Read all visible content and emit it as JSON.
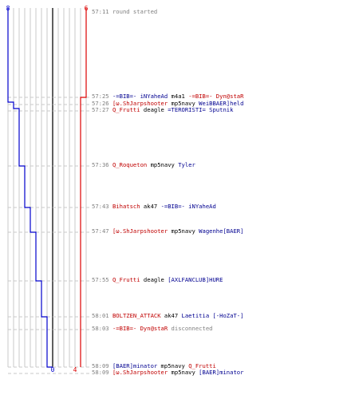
{
  "graph": {
    "blue_start_label": "8",
    "red_start_label": "6",
    "blue_end_label": "0",
    "red_end_label": "4",
    "blue_color": "#0000cc",
    "red_color": "#dd0000",
    "grid_color": "#c8c8c8",
    "dash_color": "#c8c8c8"
  },
  "events": [
    {
      "time": "57:11",
      "parts": [
        {
          "text": "round started",
          "cls": "sys"
        }
      ]
    },
    {
      "time": "57:25",
      "parts": [
        {
          "text": "-=BIB=- iNYaheAd",
          "cls": "blue"
        },
        {
          "text": " m4a1 ",
          "cls": "wpn"
        },
        {
          "text": "-=BIB=- Dyn@staR",
          "cls": "red"
        }
      ]
    },
    {
      "time": "57:26",
      "parts": [
        {
          "text": "[ω.ShJarpshooter",
          "cls": "red"
        },
        {
          "text": " mp5navy ",
          "cls": "wpn"
        },
        {
          "text": "WeiBBAER]held",
          "cls": "blue"
        }
      ]
    },
    {
      "time": "57:27",
      "parts": [
        {
          "text": "Q_Frutti",
          "cls": "red"
        },
        {
          "text": " deagle ",
          "cls": "wpn"
        },
        {
          "text": "=TERORISTI= Sputnik",
          "cls": "blue"
        }
      ]
    },
    {
      "time": "57:36",
      "parts": [
        {
          "text": "Q_Roqueton",
          "cls": "red"
        },
        {
          "text": " mp5navy ",
          "cls": "wpn"
        },
        {
          "text": "Tyler",
          "cls": "blue"
        }
      ]
    },
    {
      "time": "57:43",
      "parts": [
        {
          "text": "Bihatsch",
          "cls": "red"
        },
        {
          "text": " ak47 ",
          "cls": "wpn"
        },
        {
          "text": "-=BIB=- iNYaheAd",
          "cls": "blue"
        }
      ]
    },
    {
      "time": "57:47",
      "parts": [
        {
          "text": "[ω.ShJarpshooter",
          "cls": "red"
        },
        {
          "text": " mp5navy ",
          "cls": "wpn"
        },
        {
          "text": "Wagenhe[BAER]",
          "cls": "blue"
        }
      ]
    },
    {
      "time": "57:55",
      "parts": [
        {
          "text": "Q_Frutti",
          "cls": "red"
        },
        {
          "text": " deagle ",
          "cls": "wpn"
        },
        {
          "text": "[AXLFANCLUB]HURE",
          "cls": "blue"
        }
      ]
    },
    {
      "time": "58:01",
      "parts": [
        {
          "text": "BOLTZEN_ATTACK",
          "cls": "red"
        },
        {
          "text": " ak47 ",
          "cls": "wpn"
        },
        {
          "text": "Laetitia [-HoZaT-]",
          "cls": "blue"
        }
      ]
    },
    {
      "time": "58:03",
      "parts": [
        {
          "text": "-=BIB=- Dyn@staR",
          "cls": "red"
        },
        {
          "text": " disconnected",
          "cls": "sys"
        }
      ]
    },
    {
      "time": "58:09",
      "parts": [
        {
          "text": "[BAER]minator",
          "cls": "blue"
        },
        {
          "text": " mp5navy ",
          "cls": "wpn"
        },
        {
          "text": "Q_Frutti",
          "cls": "red"
        }
      ]
    },
    {
      "time": "58:09",
      "parts": [
        {
          "text": "[ω.ShJarpshooter",
          "cls": "red"
        },
        {
          "text": " mp5navy ",
          "cls": "wpn"
        },
        {
          "text": "[BAER]minator",
          "cls": "blue"
        }
      ]
    }
  ]
}
